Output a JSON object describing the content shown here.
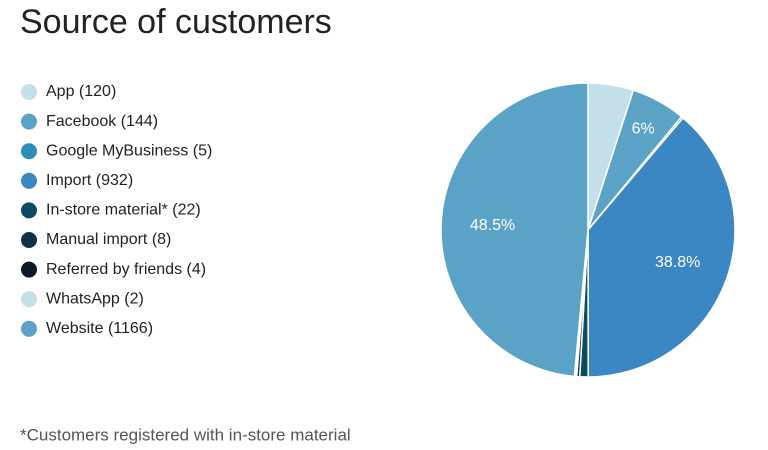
{
  "chart_data": {
    "type": "pie",
    "title": "Source of customers",
    "categories": [
      "App (120)",
      "Facebook (144)",
      "Google MyBusiness (5)",
      "Import (932)",
      "In-store material* (22)",
      "Manual import (8)",
      "Referred by friends (4)",
      "WhatsApp (2)",
      "Website (1166)"
    ],
    "values": [
      120,
      144,
      5,
      932,
      22,
      8,
      4,
      2,
      1166
    ],
    "value_labels": [
      null,
      "6%",
      null,
      "38.8%",
      null,
      null,
      null,
      null,
      "48.5%"
    ],
    "colors": [
      "#c3dfea",
      "#5ba3c6",
      "#2e8cb8",
      "#3a87c4",
      "#0d4a63",
      "#0f3347",
      "#0b1a26",
      "#c3dfea",
      "#5ba3c6"
    ],
    "footnote": "*Customers registered with in-store material"
  }
}
